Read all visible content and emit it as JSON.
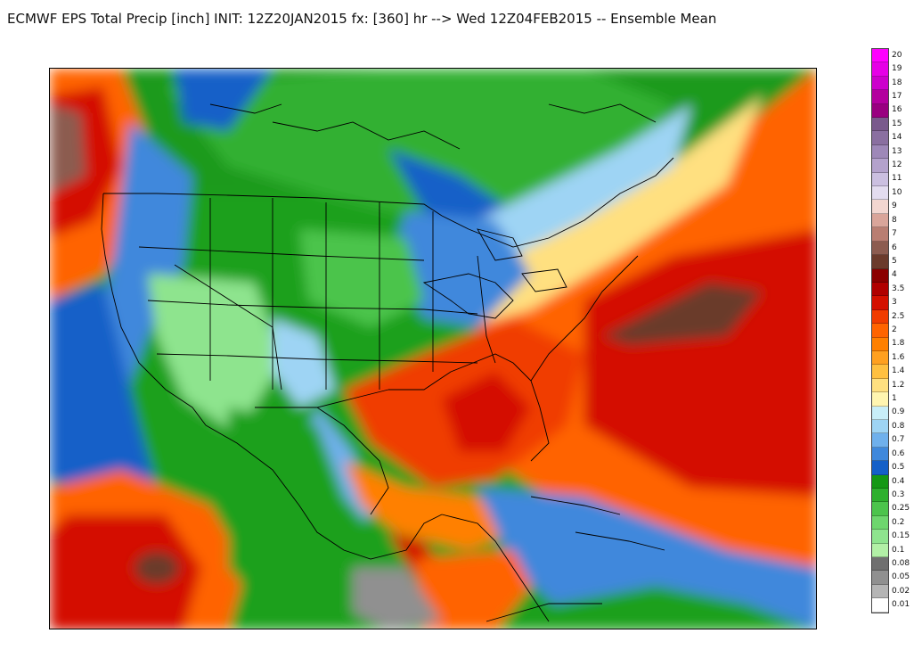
{
  "title": "ECMWF EPS Total Precip [inch] INIT: 12Z20JAN2015 fx: [360] hr --> Wed 12Z04FEB2015 -- Ensemble Mean",
  "legend": {
    "labels": [
      "20",
      "19",
      "18",
      "17",
      "16",
      "15",
      "14",
      "13",
      "12",
      "11",
      "10",
      "9",
      "8",
      "7",
      "6",
      "5",
      "4",
      "3.5",
      "3",
      "2.5",
      "2",
      "1.8",
      "1.6",
      "1.4",
      "1.2",
      "1",
      "0.9",
      "0.8",
      "0.7",
      "0.6",
      "0.5",
      "0.4",
      "0.3",
      "0.25",
      "0.2",
      "0.15",
      "0.1",
      "0.08",
      "0.05",
      "0.02",
      "0.01"
    ],
    "colors": [
      "#ff00ff",
      "#e600e6",
      "#cc00cc",
      "#b3009e",
      "#990080",
      "#7a5a8c",
      "#8a6fa0",
      "#9e88b8",
      "#b4a2cc",
      "#cbbfe0",
      "#e3dcef",
      "#f2d6d0",
      "#d9a59a",
      "#b97e72",
      "#8c5c50",
      "#6b3b2c",
      "#8b0000",
      "#b00000",
      "#d41000",
      "#f03c00",
      "#ff6400",
      "#ff8000",
      "#ffa020",
      "#ffc040",
      "#ffe080",
      "#fff5b0",
      "#c8eef8",
      "#9ed4f4",
      "#6fb0ec",
      "#3f88dc",
      "#1560c8",
      "#159815",
      "#2eb02e",
      "#4cc44c",
      "#6ed66e",
      "#8ee48e",
      "#b2f0a6",
      "#707070",
      "#909090",
      "#b5b5b5",
      "#ffffff"
    ]
  }
}
